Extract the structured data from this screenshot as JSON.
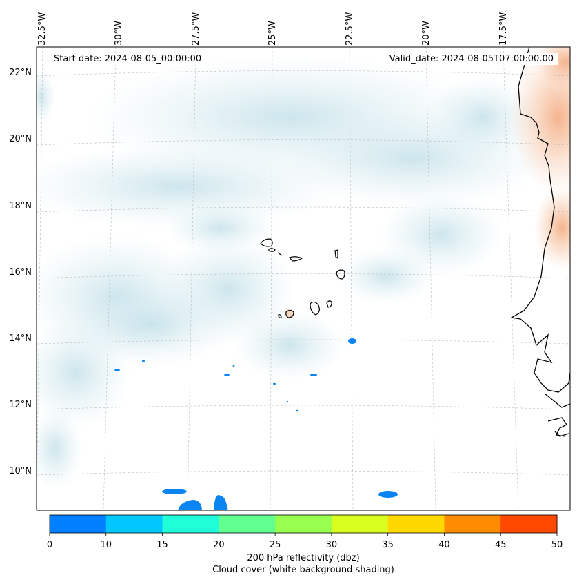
{
  "map": {
    "lon_labels": [
      "32.5°W",
      "30°W",
      "27.5°W",
      "25°W",
      "22.5°W",
      "20°W",
      "17.5°W"
    ],
    "lat_labels": [
      "22°N",
      "20°N",
      "18°N",
      "16°N",
      "14°N",
      "12°N",
      "10°N"
    ],
    "start_date": "Start date: 2024-08-05_00:00:00",
    "valid_date": "Valid_date: 2024-08-05T07:00:00.00"
  },
  "colorbar": {
    "ticks": [
      "0",
      "10",
      "15",
      "20",
      "25",
      "30",
      "35",
      "40",
      "45",
      "50"
    ],
    "colors": [
      "#0080ff",
      "#00c8ff",
      "#20ffd8",
      "#60ff90",
      "#98ff50",
      "#d8ff20",
      "#ffd800",
      "#ff8c00",
      "#ff4800"
    ],
    "title_line1": "200 hPa reflectivity (dbz)",
    "title_line2": "Cloud cover (white background shading)"
  }
}
